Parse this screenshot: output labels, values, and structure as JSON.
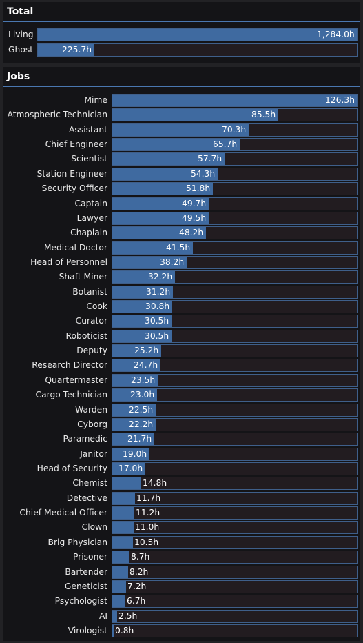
{
  "colors": {
    "accent": "#4a77b0",
    "bar_fill": "#3f6aa0",
    "bar_track": "#221c20",
    "panel": "#141417",
    "background": "#222225"
  },
  "total": {
    "title": "Total",
    "max": 1284.0,
    "rows": [
      {
        "label": "Living",
        "hours": 1284.0,
        "value": "1,284.0h"
      },
      {
        "label": "Ghost",
        "hours": 225.7,
        "value": "225.7h"
      }
    ]
  },
  "jobs": {
    "title": "Jobs",
    "max": 126.3,
    "rows": [
      {
        "label": "Mime",
        "hours": 126.3,
        "value": "126.3h"
      },
      {
        "label": "Atmospheric Technician",
        "hours": 85.5,
        "value": "85.5h"
      },
      {
        "label": "Assistant",
        "hours": 70.3,
        "value": "70.3h"
      },
      {
        "label": "Chief Engineer",
        "hours": 65.7,
        "value": "65.7h"
      },
      {
        "label": "Scientist",
        "hours": 57.7,
        "value": "57.7h"
      },
      {
        "label": "Station Engineer",
        "hours": 54.3,
        "value": "54.3h"
      },
      {
        "label": "Security Officer",
        "hours": 51.8,
        "value": "51.8h"
      },
      {
        "label": "Captain",
        "hours": 49.7,
        "value": "49.7h"
      },
      {
        "label": "Lawyer",
        "hours": 49.5,
        "value": "49.5h"
      },
      {
        "label": "Chaplain",
        "hours": 48.2,
        "value": "48.2h"
      },
      {
        "label": "Medical Doctor",
        "hours": 41.5,
        "value": "41.5h"
      },
      {
        "label": "Head of Personnel",
        "hours": 38.2,
        "value": "38.2h"
      },
      {
        "label": "Shaft Miner",
        "hours": 32.2,
        "value": "32.2h"
      },
      {
        "label": "Botanist",
        "hours": 31.2,
        "value": "31.2h"
      },
      {
        "label": "Cook",
        "hours": 30.8,
        "value": "30.8h"
      },
      {
        "label": "Curator",
        "hours": 30.5,
        "value": "30.5h"
      },
      {
        "label": "Roboticist",
        "hours": 30.5,
        "value": "30.5h"
      },
      {
        "label": "Deputy",
        "hours": 25.2,
        "value": "25.2h"
      },
      {
        "label": "Research Director",
        "hours": 24.7,
        "value": "24.7h"
      },
      {
        "label": "Quartermaster",
        "hours": 23.5,
        "value": "23.5h"
      },
      {
        "label": "Cargo Technician",
        "hours": 23.0,
        "value": "23.0h"
      },
      {
        "label": "Warden",
        "hours": 22.5,
        "value": "22.5h"
      },
      {
        "label": "Cyborg",
        "hours": 22.2,
        "value": "22.2h"
      },
      {
        "label": "Paramedic",
        "hours": 21.7,
        "value": "21.7h"
      },
      {
        "label": "Janitor",
        "hours": 19.0,
        "value": "19.0h"
      },
      {
        "label": "Head of Security",
        "hours": 17.0,
        "value": "17.0h"
      },
      {
        "label": "Chemist",
        "hours": 14.8,
        "value": "14.8h"
      },
      {
        "label": "Detective",
        "hours": 11.7,
        "value": "11.7h"
      },
      {
        "label": "Chief Medical Officer",
        "hours": 11.2,
        "value": "11.2h"
      },
      {
        "label": "Clown",
        "hours": 11.0,
        "value": "11.0h"
      },
      {
        "label": "Brig Physician",
        "hours": 10.5,
        "value": "10.5h"
      },
      {
        "label": "Prisoner",
        "hours": 8.7,
        "value": "8.7h"
      },
      {
        "label": "Bartender",
        "hours": 8.2,
        "value": "8.2h"
      },
      {
        "label": "Geneticist",
        "hours": 7.2,
        "value": "7.2h"
      },
      {
        "label": "Psychologist",
        "hours": 6.7,
        "value": "6.7h"
      },
      {
        "label": "AI",
        "hours": 2.5,
        "value": "2.5h"
      },
      {
        "label": "Virologist",
        "hours": 0.8,
        "value": "0.8h"
      }
    ]
  }
}
